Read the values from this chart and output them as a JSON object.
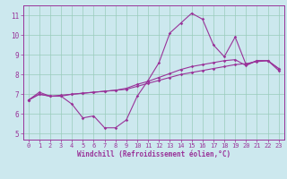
{
  "xlabel": "Windchill (Refroidissement éolien,°C)",
  "background_color": "#cce8ee",
  "grid_color": "#99ccbb",
  "line_color": "#993399",
  "axis_color": "#993399",
  "spine_color": "#993399",
  "xlim": [
    -0.5,
    23.5
  ],
  "ylim": [
    4.7,
    11.5
  ],
  "yticks": [
    5,
    6,
    7,
    8,
    9,
    10,
    11
  ],
  "xticks": [
    0,
    1,
    2,
    3,
    4,
    5,
    6,
    7,
    8,
    9,
    10,
    11,
    12,
    13,
    14,
    15,
    16,
    17,
    18,
    19,
    20,
    21,
    22,
    23
  ],
  "series1_x": [
    0,
    1,
    2,
    3,
    4,
    5,
    6,
    7,
    8,
    9,
    10,
    11,
    12,
    13,
    14,
    15,
    16,
    17,
    18,
    19,
    20,
    21,
    22,
    23
  ],
  "series1_y": [
    6.7,
    7.1,
    6.9,
    6.9,
    6.5,
    5.8,
    5.9,
    5.3,
    5.3,
    5.7,
    6.9,
    7.7,
    8.6,
    10.1,
    10.6,
    11.1,
    10.8,
    9.5,
    8.9,
    9.9,
    8.5,
    8.7,
    8.7,
    8.3
  ],
  "series2_x": [
    0,
    1,
    2,
    3,
    4,
    5,
    6,
    7,
    8,
    9,
    10,
    11,
    12,
    13,
    14,
    15,
    16,
    17,
    18,
    19,
    20,
    21,
    22,
    23
  ],
  "series2_y": [
    6.7,
    7.0,
    6.9,
    6.9,
    7.0,
    7.05,
    7.1,
    7.15,
    7.2,
    7.25,
    7.4,
    7.55,
    7.7,
    7.85,
    8.0,
    8.1,
    8.2,
    8.3,
    8.4,
    8.5,
    8.55,
    8.65,
    8.7,
    8.2
  ],
  "series3_x": [
    0,
    1,
    2,
    3,
    4,
    5,
    6,
    7,
    8,
    9,
    10,
    11,
    12,
    13,
    14,
    15,
    16,
    17,
    18,
    19,
    20,
    21,
    22,
    23
  ],
  "series3_y": [
    6.7,
    7.0,
    6.9,
    6.95,
    7.0,
    7.05,
    7.1,
    7.15,
    7.2,
    7.3,
    7.5,
    7.65,
    7.85,
    8.05,
    8.25,
    8.4,
    8.5,
    8.6,
    8.7,
    8.75,
    8.45,
    8.7,
    8.7,
    8.3
  ],
  "ylabel_fontsize": 5.5,
  "xlabel_fontsize": 5.5,
  "tick_labelsize": 5.0,
  "linewidth": 0.8,
  "markersize": 1.8
}
